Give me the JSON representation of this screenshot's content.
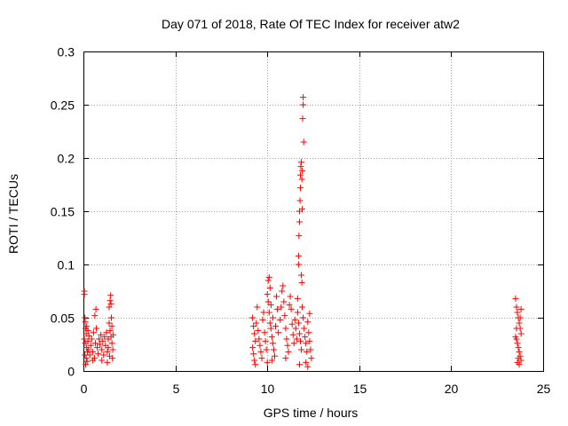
{
  "chart_data": {
    "type": "scatter",
    "title": "Day 071 of 2018, Rate Of TEC Index for receiver atw2",
    "xlabel": "GPS time / hours",
    "ylabel": "ROTI / TECUs",
    "xlim": [
      0,
      25
    ],
    "ylim": [
      0,
      0.3
    ],
    "x_ticks": [
      0,
      5,
      10,
      15,
      20,
      25
    ],
    "x_tick_labels": [
      "0",
      "5",
      "10",
      "15",
      "20",
      "25"
    ],
    "y_ticks": [
      0,
      0.05,
      0.1,
      0.15,
      0.2,
      0.25,
      0.3
    ],
    "y_tick_labels": [
      "0",
      "0.05",
      "0.1",
      "0.15",
      "0.2",
      "0.25",
      "0.3"
    ],
    "grid": true,
    "marker": "+",
    "marker_color": "#ff0000",
    "series": [
      {
        "points": [
          [
            0.05,
            0.075
          ],
          [
            0.05,
            0.072
          ],
          [
            0.08,
            0.05
          ],
          [
            0.1,
            0.046
          ],
          [
            0.12,
            0.04
          ],
          [
            0.15,
            0.035
          ],
          [
            0.05,
            0.03
          ],
          [
            0.1,
            0.026
          ],
          [
            0.18,
            0.022
          ],
          [
            0.22,
            0.018
          ],
          [
            0.08,
            0.015
          ],
          [
            0.15,
            0.012
          ],
          [
            0.2,
            0.009
          ],
          [
            0.12,
            0.006
          ],
          [
            0.25,
            0.028
          ],
          [
            0.3,
            0.033
          ],
          [
            0.28,
            0.02
          ],
          [
            0.35,
            0.015
          ],
          [
            0.18,
            0.042
          ],
          [
            0.25,
            0.038
          ],
          [
            0.4,
            0.024
          ],
          [
            0.45,
            0.03
          ],
          [
            0.5,
            0.018
          ],
          [
            0.55,
            0.036
          ],
          [
            0.6,
            0.012
          ],
          [
            0.65,
            0.026
          ],
          [
            0.7,
            0.04
          ],
          [
            0.68,
            0.058
          ],
          [
            0.62,
            0.052
          ],
          [
            0.75,
            0.022
          ],
          [
            0.8,
            0.016
          ],
          [
            0.85,
            0.03
          ],
          [
            0.9,
            0.025
          ],
          [
            0.95,
            0.034
          ],
          [
            1.0,
            0.02
          ],
          [
            1.05,
            0.028
          ],
          [
            1.1,
            0.015
          ],
          [
            1.15,
            0.032
          ],
          [
            1.2,
            0.024
          ],
          [
            0.5,
            0.01
          ],
          [
            1.3,
            0.018
          ],
          [
            1.35,
            0.03
          ],
          [
            1.4,
            0.06
          ],
          [
            1.45,
            0.066
          ],
          [
            1.48,
            0.071
          ],
          [
            1.5,
            0.063
          ],
          [
            1.4,
            0.045
          ],
          [
            1.45,
            0.038
          ],
          [
            1.5,
            0.032
          ],
          [
            1.55,
            0.026
          ],
          [
            1.6,
            0.02
          ],
          [
            1.62,
            0.034
          ],
          [
            1.55,
            0.042
          ],
          [
            1.52,
            0.05
          ],
          [
            1.35,
            0.022
          ],
          [
            1.42,
            0.014
          ],
          [
            1.58,
            0.012
          ],
          [
            1.3,
            0.008
          ],
          [
            1.25,
            0.036
          ],
          [
            1.0,
            0.01
          ],
          [
            9.2,
            0.05
          ],
          [
            9.25,
            0.042
          ],
          [
            9.3,
            0.035
          ],
          [
            9.35,
            0.028
          ],
          [
            9.2,
            0.022
          ],
          [
            9.25,
            0.016
          ],
          [
            9.3,
            0.01
          ],
          [
            9.4,
            0.045
          ],
          [
            9.45,
            0.06
          ],
          [
            9.5,
            0.038
          ],
          [
            9.55,
            0.03
          ],
          [
            9.6,
            0.024
          ],
          [
            9.65,
            0.018
          ],
          [
            9.7,
            0.012
          ],
          [
            9.75,
            0.048
          ],
          [
            9.8,
            0.055
          ],
          [
            9.85,
            0.036
          ],
          [
            9.9,
            0.028
          ],
          [
            9.95,
            0.02
          ],
          [
            9.35,
            0.006
          ],
          [
            10.0,
            0.072
          ],
          [
            10.05,
            0.085
          ],
          [
            10.1,
            0.088
          ],
          [
            10.15,
            0.078
          ],
          [
            10.05,
            0.065
          ],
          [
            10.1,
            0.055
          ],
          [
            10.15,
            0.045
          ],
          [
            10.2,
            0.04
          ],
          [
            10.25,
            0.032
          ],
          [
            10.3,
            0.026
          ],
          [
            10.35,
            0.02
          ],
          [
            10.4,
            0.014
          ],
          [
            10.0,
            0.008
          ],
          [
            10.2,
            0.062
          ],
          [
            10.3,
            0.05
          ],
          [
            10.45,
            0.042
          ],
          [
            10.5,
            0.07
          ],
          [
            10.55,
            0.058
          ],
          [
            10.6,
            0.036
          ],
          [
            10.25,
            0.01
          ],
          [
            10.7,
            0.048
          ],
          [
            10.75,
            0.06
          ],
          [
            10.8,
            0.075
          ],
          [
            10.85,
            0.08
          ],
          [
            10.9,
            0.065
          ],
          [
            10.95,
            0.052
          ],
          [
            11.0,
            0.04
          ],
          [
            11.05,
            0.03
          ],
          [
            11.1,
            0.024
          ],
          [
            11.15,
            0.018
          ],
          [
            11.2,
            0.062
          ],
          [
            11.25,
            0.07
          ],
          [
            11.3,
            0.058
          ],
          [
            11.35,
            0.044
          ],
          [
            11.4,
            0.034
          ],
          [
            11.45,
            0.026
          ],
          [
            11.5,
            0.048
          ],
          [
            11.55,
            0.04
          ],
          [
            11.6,
            0.03
          ],
          [
            11.0,
            0.012
          ],
          [
            11.65,
            0.068
          ],
          [
            11.7,
            0.1
          ],
          [
            11.7,
            0.108
          ],
          [
            11.72,
            0.127
          ],
          [
            11.75,
            0.14
          ],
          [
            11.75,
            0.15
          ],
          [
            11.78,
            0.16
          ],
          [
            11.8,
            0.172
          ],
          [
            11.8,
            0.184
          ],
          [
            11.82,
            0.192
          ],
          [
            11.85,
            0.196
          ],
          [
            11.88,
            0.18
          ],
          [
            11.85,
            0.09
          ],
          [
            11.88,
            0.083
          ],
          [
            11.9,
            0.188
          ],
          [
            11.92,
            0.237
          ],
          [
            11.95,
            0.25
          ],
          [
            11.95,
            0.257
          ],
          [
            11.98,
            0.215
          ],
          [
            11.9,
            0.152
          ],
          [
            11.65,
            0.055
          ],
          [
            11.7,
            0.045
          ],
          [
            11.75,
            0.035
          ],
          [
            11.8,
            0.028
          ],
          [
            11.85,
            0.02
          ],
          [
            11.9,
            0.06
          ],
          [
            11.95,
            0.05
          ],
          [
            12.0,
            0.04
          ],
          [
            12.05,
            0.032
          ],
          [
            12.1,
            0.026
          ],
          [
            12.15,
            0.018
          ],
          [
            12.2,
            0.046
          ],
          [
            12.25,
            0.036
          ],
          [
            12.3,
            0.028
          ],
          [
            12.35,
            0.02
          ],
          [
            12.4,
            0.012
          ],
          [
            12.1,
            0.008
          ],
          [
            11.75,
            0.006
          ],
          [
            12.3,
            0.054
          ],
          [
            12.2,
            0.004
          ],
          [
            23.5,
            0.068
          ],
          [
            23.55,
            0.06
          ],
          [
            23.6,
            0.055
          ],
          [
            23.65,
            0.05
          ],
          [
            23.7,
            0.045
          ],
          [
            23.75,
            0.04
          ],
          [
            23.8,
            0.035
          ],
          [
            23.55,
            0.03
          ],
          [
            23.6,
            0.026
          ],
          [
            23.65,
            0.022
          ],
          [
            23.7,
            0.018
          ],
          [
            23.75,
            0.014
          ],
          [
            23.8,
            0.01
          ],
          [
            23.6,
            0.008
          ],
          [
            23.7,
            0.006
          ],
          [
            23.5,
            0.032
          ],
          [
            23.55,
            0.04
          ],
          [
            23.8,
            0.058
          ],
          [
            23.75,
            0.05
          ],
          [
            23.65,
            0.012
          ]
        ]
      }
    ]
  }
}
